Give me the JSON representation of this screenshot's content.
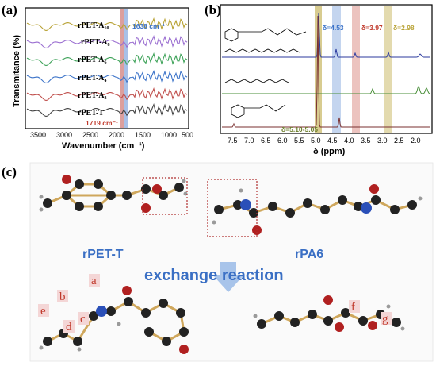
{
  "panels": {
    "a": {
      "label": "(a)",
      "ylabel": "Transmitance (%)",
      "xlabel": "Wavenumber (cm⁻¹)",
      "xticks": [
        "3500",
        "3000",
        "2500",
        "2000",
        "1500",
        "1000",
        "500"
      ],
      "band_right": "1638 cm⁻¹",
      "band_left": "1719 cm⁻¹",
      "series": [
        {
          "name": "rPET-A₁₀",
          "color": "#b8a235"
        },
        {
          "name": "rPET-A₈",
          "color": "#9b6fd1"
        },
        {
          "name": "rPET-A₆",
          "color": "#3fa35a"
        },
        {
          "name": "rPET-A₄",
          "color": "#3d74c9"
        },
        {
          "name": "rPET-A₂",
          "color": "#c0504d"
        },
        {
          "name": "rPET-T",
          "color": "#444444"
        }
      ]
    },
    "b": {
      "label": "(b)",
      "xlabel": "δ (ppm)",
      "xticks": [
        "7.5",
        "7.0",
        "6.5",
        "6.0",
        "5.5",
        "5.0",
        "4.5",
        "4.0",
        "3.5",
        "3.0",
        "2.5",
        "2.0"
      ],
      "shift_labels": [
        "δ=4.53",
        "δ=3.97",
        "δ=2.98"
      ],
      "shift_colors": [
        "#3d74c9",
        "#c0392b",
        "#b8a235"
      ],
      "bottom_label": "δ=5.10-5.05",
      "bottom_label_color": "#6b7d2a",
      "spectra_colors": [
        "#2b3a9e",
        "#4a8f3a",
        "#7a2f2f"
      ]
    },
    "c": {
      "label": "(c)",
      "mol_left": "rPET-T",
      "mol_right": "rPA6",
      "reaction": "exchange reaction",
      "letters": [
        "a",
        "b",
        "c",
        "d",
        "e",
        "f",
        "g"
      ]
    }
  }
}
